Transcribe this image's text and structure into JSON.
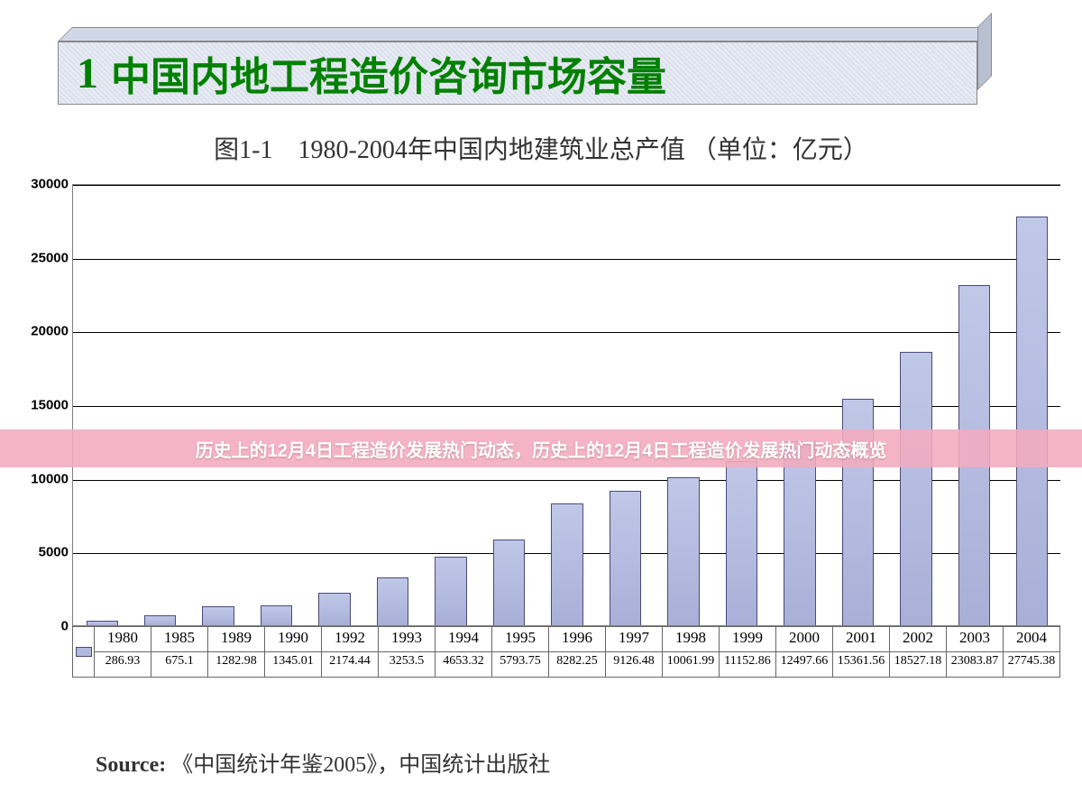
{
  "header": {
    "number": "1",
    "title": "中国内地工程造价咨询市场容量",
    "number_color": "#008000",
    "title_color": "#008000",
    "title_fontsize": 44,
    "banner_bg": "#e8ecf4"
  },
  "chart": {
    "title": "图1-1　1980-2004年中国内地建筑业总产值 （单位：亿元）",
    "title_fontsize": 28,
    "title_color": "#333333",
    "type": "bar",
    "ylim": [
      0,
      30000
    ],
    "ytick_step": 5000,
    "yticks": [
      "0",
      "5000",
      "10000",
      "15000",
      "20000",
      "25000",
      "30000"
    ],
    "categories": [
      "1980",
      "1985",
      "1989",
      "1990",
      "1992",
      "1993",
      "1994",
      "1995",
      "1996",
      "1997",
      "1998",
      "1999",
      "2000",
      "2001",
      "2002",
      "2003",
      "2004"
    ],
    "values": [
      286.93,
      675.1,
      1282.98,
      1345.01,
      2174.44,
      3253.5,
      4653.32,
      5793.75,
      8282.25,
      9126.48,
      10061.99,
      11152.86,
      12497.66,
      15361.56,
      18527.18,
      23083.87,
      27745.38
    ],
    "value_labels": [
      "286.93",
      "675.1",
      "1282.98",
      "1345.01",
      "2174.44",
      "3253.5",
      "4653.32",
      "5793.75",
      "8282.25",
      "9126.48",
      "10061.99",
      "11152.86",
      "12497.66",
      "15361.56",
      "18527.18",
      "23083.87",
      "27745.38"
    ],
    "bar_color": "#b0b8dc",
    "bar_border": "#4a4a7a",
    "grid_color": "#000000",
    "background_color": "#ffffff",
    "bar_width_ratio": 0.55,
    "axis_font": "Arial",
    "axis_fontsize": 15,
    "axis_fontweight": "bold",
    "table_fontsize": 14
  },
  "overlay": {
    "text": "历史上的12月4日工程造价发展热门动态，历史上的12月4日工程造价发展热门动态概览",
    "bg_color": "#f4aabe",
    "text_color": "#ffffff",
    "fontsize": 20
  },
  "source": {
    "label": "Source:",
    "text": "《中国统计年鉴2005》，中国统计出版社",
    "fontsize": 24
  }
}
